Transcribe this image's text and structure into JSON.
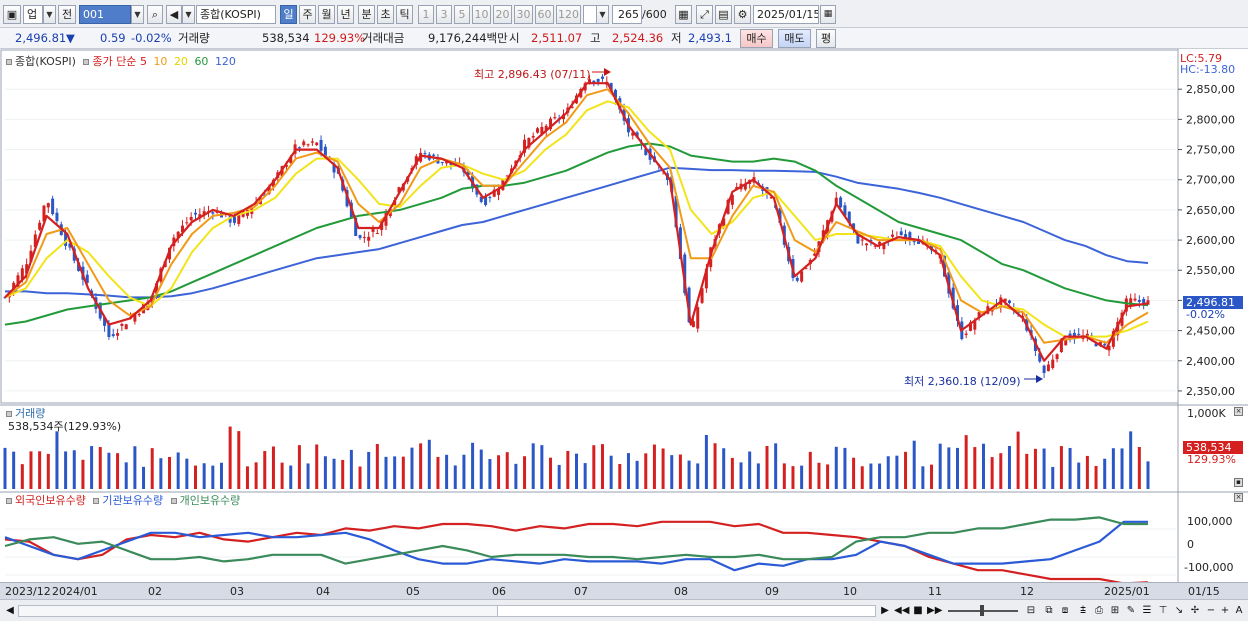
{
  "toolbar": {
    "mode": "업",
    "prev": "전",
    "code": "001",
    "name": "종합(KOSPI)",
    "periods": [
      "일",
      "주",
      "월",
      "년",
      "분",
      "초",
      "틱"
    ],
    "selected_period": "일",
    "minutes": [
      "1",
      "3",
      "5",
      "10",
      "20",
      "30",
      "60",
      "120"
    ],
    "count": "265",
    "max_count": "/600",
    "date": "2025/01/15"
  },
  "quote": {
    "price": "2,496.81",
    "arrow": "▼",
    "change": "0.59",
    "change_pct": "-0.02%",
    "volume_label": "거래량",
    "volume": "538,534",
    "volume_pct": "129.93%",
    "amount_label": "거래대금",
    "amount": "9,176,244백만",
    "open_label": "시",
    "open": "2,511.07",
    "high_label": "고",
    "high": "2,524.36",
    "low_label": "저",
    "low": "2,493.1",
    "buy_button": "매수",
    "sell_button": "매도",
    "eval_button": "평"
  },
  "colors": {
    "up": "#d42020",
    "down": "#2a56c6",
    "ma5": "#d42020",
    "ma10": "#f09a18",
    "ma20": "#f2e418",
    "ma60": "#239a3a",
    "ma120": "#3c64d8",
    "foreign": "#d42020",
    "institution": "#2a5ad6",
    "individual": "#3a8a5a"
  },
  "price_panel": {
    "legend_name": "종합(KOSPI)",
    "legend_ma_title": "종가 단순",
    "legend_ma": [
      "5",
      "10",
      "20",
      "60",
      "120"
    ],
    "lc": "LC:5.79",
    "hc": "HC:-13.80",
    "high_annotation": "최고 2,896.43 (07/11)",
    "low_annotation": "최저 2,360.18 (12/09)",
    "last_price_box": "2,496.81",
    "last_pct_box": "-0.02%"
  },
  "volume_panel": {
    "title": "거래량",
    "subtitle": "538,534주(129.93%)",
    "axis_top": "1,000K",
    "last_box": "538,534",
    "last_pct": "129.93%"
  },
  "flow_panel": {
    "legend": [
      "외국인보유수량",
      "기관보유수량",
      "개인보유수량"
    ],
    "ticks": [
      "100,000",
      "0",
      "-100,000"
    ]
  },
  "dates": [
    "2023/12",
    "2024/01",
    "02",
    "03",
    "04",
    "05",
    "06",
    "07",
    "08",
    "09",
    "10",
    "11",
    "12",
    "2025/01",
    "01/15"
  ],
  "chart_data": {
    "type": "candlestick",
    "x_range": [
      "2023/12",
      "2025/01/15"
    ],
    "ylim": [
      2330,
      2910
    ],
    "yticks": [
      2350,
      2400,
      2450,
      2500,
      2550,
      2600,
      2650,
      2700,
      2750,
      2800,
      2850
    ],
    "ytick_labels": [
      "2,350,00",
      "2,400,00",
      "2,450,00",
      "2,500,00",
      "2,550,00",
      "2,600,00",
      "2,650,00",
      "2,700,00",
      "2,750,00",
      "2,800,00",
      "2,850,00"
    ],
    "close_path": [
      {
        "x": "2023/12",
        "y": 2505
      },
      {
        "x": "2023/12",
        "y": 2560
      },
      {
        "x": "2024/01",
        "y": 2670
      },
      {
        "x": "2024/01",
        "y": 2590
      },
      {
        "x": "2024/01",
        "y": 2520
      },
      {
        "x": "2024/01",
        "y": 2440
      },
      {
        "x": "2024/01",
        "y": 2470
      },
      {
        "x": "02",
        "y": 2500
      },
      {
        "x": "02",
        "y": 2600
      },
      {
        "x": "02",
        "y": 2640
      },
      {
        "x": "02",
        "y": 2650
      },
      {
        "x": "03",
        "y": 2630
      },
      {
        "x": "03",
        "y": 2660
      },
      {
        "x": "03",
        "y": 2700
      },
      {
        "x": "03",
        "y": 2755
      },
      {
        "x": "04",
        "y": 2760
      },
      {
        "x": "04",
        "y": 2710
      },
      {
        "x": "04",
        "y": 2600
      },
      {
        "x": "04",
        "y": 2620
      },
      {
        "x": "05",
        "y": 2690
      },
      {
        "x": "05",
        "y": 2745
      },
      {
        "x": "05",
        "y": 2730
      },
      {
        "x": "05",
        "y": 2720
      },
      {
        "x": "06",
        "y": 2660
      },
      {
        "x": "06",
        "y": 2700
      },
      {
        "x": "06",
        "y": 2760
      },
      {
        "x": "06",
        "y": 2790
      },
      {
        "x": "07",
        "y": 2810
      },
      {
        "x": "07",
        "y": 2870
      },
      {
        "x": "07",
        "y": 2860
      },
      {
        "x": "07",
        "y": 2780
      },
      {
        "x": "07",
        "y": 2740
      },
      {
        "x": "08",
        "y": 2700
      },
      {
        "x": "08",
        "y": 2440
      },
      {
        "x": "08",
        "y": 2590
      },
      {
        "x": "08",
        "y": 2680
      },
      {
        "x": "08",
        "y": 2700
      },
      {
        "x": "09",
        "y": 2660
      },
      {
        "x": "09",
        "y": 2530
      },
      {
        "x": "09",
        "y": 2580
      },
      {
        "x": "09",
        "y": 2670
      },
      {
        "x": "10",
        "y": 2600
      },
      {
        "x": "10",
        "y": 2590
      },
      {
        "x": "10",
        "y": 2610
      },
      {
        "x": "10",
        "y": 2600
      },
      {
        "x": "11",
        "y": 2570
      },
      {
        "x": "11",
        "y": 2440
      },
      {
        "x": "11",
        "y": 2480
      },
      {
        "x": "11",
        "y": 2500
      },
      {
        "x": "12",
        "y": 2470
      },
      {
        "x": "12",
        "y": 2380
      },
      {
        "x": "12",
        "y": 2440
      },
      {
        "x": "12",
        "y": 2440
      },
      {
        "x": "12",
        "y": 2420
      },
      {
        "x": "2025/01",
        "y": 2500
      },
      {
        "x": "01/15",
        "y": 2496.81
      }
    ],
    "moving_averages": [
      {
        "name": "5",
        "values": [
          2505,
          2540,
          2640,
          2610,
          2520,
          2460,
          2470,
          2500,
          2590,
          2630,
          2650,
          2640,
          2660,
          2700,
          2750,
          2750,
          2720,
          2620,
          2620,
          2680,
          2740,
          2735,
          2720,
          2670,
          2690,
          2750,
          2780,
          2810,
          2860,
          2860,
          2790,
          2745,
          2700,
          2460,
          2580,
          2680,
          2700,
          2670,
          2540,
          2570,
          2660,
          2610,
          2590,
          2605,
          2600,
          2575,
          2450,
          2475,
          2500,
          2470,
          2400,
          2440,
          2440,
          2420,
          2490,
          2495
        ]
      },
      {
        "name": "10",
        "values": [
          2505,
          2530,
          2610,
          2620,
          2560,
          2500,
          2475,
          2490,
          2560,
          2610,
          2640,
          2645,
          2655,
          2690,
          2735,
          2745,
          2730,
          2660,
          2630,
          2660,
          2720,
          2735,
          2725,
          2690,
          2690,
          2730,
          2770,
          2795,
          2840,
          2850,
          2810,
          2760,
          2720,
          2570,
          2570,
          2640,
          2690,
          2680,
          2600,
          2580,
          2630,
          2615,
          2600,
          2600,
          2600,
          2585,
          2500,
          2480,
          2490,
          2480,
          2430,
          2435,
          2440,
          2430,
          2460,
          2480
        ]
      },
      {
        "name": "20",
        "values": [
          2505,
          2520,
          2570,
          2600,
          2580,
          2540,
          2505,
          2490,
          2520,
          2580,
          2620,
          2640,
          2650,
          2670,
          2710,
          2735,
          2735,
          2700,
          2660,
          2655,
          2690,
          2720,
          2725,
          2710,
          2700,
          2715,
          2750,
          2775,
          2815,
          2830,
          2820,
          2780,
          2750,
          2650,
          2610,
          2630,
          2670,
          2680,
          2640,
          2600,
          2610,
          2610,
          2605,
          2600,
          2600,
          2590,
          2540,
          2500,
          2490,
          2485,
          2460,
          2440,
          2440,
          2440,
          2450,
          2465
        ]
      },
      {
        "name": "60",
        "values": [
          2460,
          2465,
          2475,
          2485,
          2490,
          2495,
          2500,
          2505,
          2515,
          2530,
          2545,
          2560,
          2575,
          2590,
          2605,
          2620,
          2630,
          2640,
          2645,
          2650,
          2660,
          2670,
          2685,
          2690,
          2690,
          2695,
          2705,
          2715,
          2730,
          2745,
          2755,
          2760,
          2755,
          2740,
          2735,
          2730,
          2730,
          2735,
          2730,
          2715,
          2690,
          2670,
          2650,
          2630,
          2620,
          2610,
          2600,
          2580,
          2560,
          2550,
          2535,
          2520,
          2510,
          2500,
          2495,
          2492
        ]
      },
      {
        "name": "120",
        "values": [
          2515,
          2515,
          2512,
          2512,
          2510,
          2508,
          2505,
          2505,
          2507,
          2512,
          2520,
          2530,
          2540,
          2550,
          2560,
          2570,
          2575,
          2580,
          2585,
          2595,
          2605,
          2615,
          2625,
          2630,
          2640,
          2650,
          2660,
          2670,
          2680,
          2690,
          2700,
          2710,
          2720,
          2718,
          2716,
          2716,
          2715,
          2715,
          2714,
          2713,
          2705,
          2695,
          2690,
          2685,
          2678,
          2670,
          2660,
          2650,
          2640,
          2630,
          2615,
          2600,
          2590,
          2575,
          2565,
          2562
        ]
      }
    ],
    "flow_series": [
      {
        "name": "외국인보유수량",
        "values": [
          30,
          20,
          -40,
          -60,
          -40,
          30,
          50,
          40,
          60,
          30,
          20,
          40,
          60,
          50,
          80,
          70,
          90,
          80,
          100,
          100,
          90,
          70,
          90,
          80,
          100,
          100,
          90,
          110,
          110,
          110,
          90,
          100,
          60,
          60,
          50,
          40,
          20,
          0,
          -50,
          -80,
          -110,
          -110,
          -130,
          -150,
          -150,
          -150,
          -170,
          -165
        ]
      },
      {
        "name": "기관보유수량",
        "values": [
          40,
          0,
          -40,
          -60,
          -20,
          20,
          60,
          60,
          40,
          50,
          60,
          40,
          40,
          50,
          60,
          30,
          -20,
          -60,
          -80,
          -80,
          -60,
          -70,
          -80,
          -60,
          -70,
          -70,
          -70,
          -80,
          -60,
          -60,
          -110,
          -80,
          -90,
          -60,
          -60,
          -40,
          20,
          0,
          -40,
          -80,
          -80,
          -80,
          -70,
          -60,
          -20,
          20,
          110,
          110
        ]
      },
      {
        "name": "개인보유수량",
        "values": [
          0,
          30,
          40,
          10,
          20,
          -20,
          -60,
          -60,
          -50,
          -70,
          -60,
          -40,
          -40,
          -40,
          -80,
          -60,
          -40,
          -20,
          0,
          -20,
          -50,
          -40,
          -40,
          -40,
          -50,
          -50,
          -60,
          -50,
          -40,
          -50,
          -50,
          -40,
          -60,
          -60,
          -50,
          20,
          40,
          40,
          60,
          60,
          80,
          80,
          100,
          120,
          120,
          130,
          100,
          100
        ]
      }
    ]
  }
}
